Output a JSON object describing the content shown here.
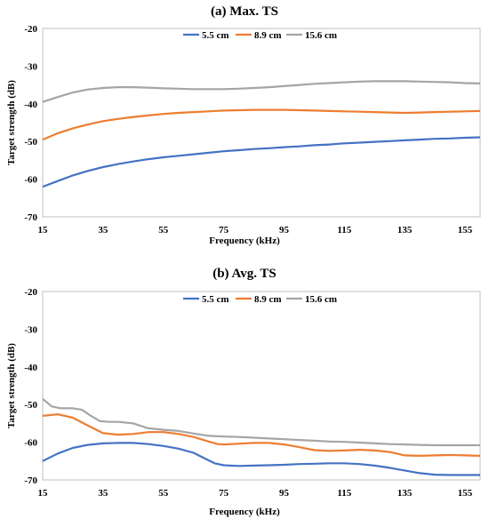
{
  "colors": {
    "s1": "#4472C4",
    "s2": "#ED7D31",
    "s3": "#A5A5A5"
  },
  "chart_data": [
    {
      "type": "line",
      "title": "(a) Max. TS",
      "xlabel": "Frequency (kHz)",
      "ylabel": "Target strength (dB)",
      "xlim": [
        15,
        160
      ],
      "ylim": [
        -70,
        -20
      ],
      "xticks": [
        "15",
        "35",
        "55",
        "75",
        "95",
        "115",
        "135",
        "155"
      ],
      "yticks": [
        "-20",
        "-30",
        "-40",
        "-50",
        "-60",
        "-70"
      ],
      "legend_position": "top-center",
      "grid": false,
      "series": [
        {
          "name": "5.5 cm",
          "x": [
            15,
            20,
            25,
            30,
            35,
            40,
            45,
            50,
            55,
            60,
            65,
            70,
            75,
            80,
            85,
            90,
            95,
            100,
            105,
            110,
            115,
            120,
            125,
            130,
            135,
            140,
            145,
            150,
            155,
            160
          ],
          "y": [
            -62,
            -60.5,
            -59,
            -57.8,
            -56.8,
            -56,
            -55.3,
            -54.7,
            -54.2,
            -53.8,
            -53.4,
            -53,
            -52.6,
            -52.3,
            -52,
            -51.8,
            -51.5,
            -51.3,
            -51,
            -50.8,
            -50.5,
            -50.3,
            -50.1,
            -49.9,
            -49.7,
            -49.5,
            -49.3,
            -49.2,
            -49,
            -48.9
          ]
        },
        {
          "name": "8.9 cm",
          "x": [
            15,
            20,
            25,
            30,
            35,
            40,
            45,
            50,
            55,
            60,
            65,
            70,
            75,
            80,
            85,
            90,
            95,
            100,
            105,
            110,
            115,
            120,
            125,
            130,
            135,
            140,
            145,
            150,
            155,
            160
          ],
          "y": [
            -49.5,
            -47.8,
            -46.5,
            -45.5,
            -44.6,
            -44,
            -43.5,
            -43.1,
            -42.7,
            -42.4,
            -42.2,
            -42,
            -41.8,
            -41.7,
            -41.6,
            -41.6,
            -41.6,
            -41.7,
            -41.8,
            -41.9,
            -42,
            -42.1,
            -42.2,
            -42.3,
            -42.4,
            -42.3,
            -42.2,
            -42.1,
            -42,
            -41.9
          ]
        },
        {
          "name": "15.6 cm",
          "x": [
            15,
            20,
            25,
            30,
            35,
            40,
            45,
            50,
            55,
            60,
            65,
            70,
            75,
            80,
            85,
            90,
            95,
            100,
            105,
            110,
            115,
            120,
            125,
            130,
            135,
            140,
            145,
            150,
            155,
            160
          ],
          "y": [
            -39.5,
            -38.2,
            -37,
            -36.2,
            -35.8,
            -35.6,
            -35.6,
            -35.7,
            -35.9,
            -36,
            -36.1,
            -36.1,
            -36.1,
            -36,
            -35.8,
            -35.6,
            -35.3,
            -35,
            -34.7,
            -34.5,
            -34.3,
            -34.1,
            -34,
            -34,
            -34,
            -34.1,
            -34.2,
            -34.3,
            -34.5,
            -34.6
          ]
        }
      ]
    },
    {
      "type": "line",
      "title": "(b) Avg. TS",
      "xlabel": "Frequency (kHz)",
      "ylabel": "Target strength (dB)",
      "xlim": [
        15,
        160
      ],
      "ylim": [
        -70,
        -20
      ],
      "xticks": [
        "15",
        "35",
        "55",
        "75",
        "95",
        "115",
        "135",
        "155"
      ],
      "yticks": [
        "-20",
        "-30",
        "-40",
        "-50",
        "-60",
        "-70"
      ],
      "legend_position": "top-center",
      "grid": false,
      "series": [
        {
          "name": "5.5 cm",
          "x": [
            15,
            20,
            25,
            30,
            35,
            40,
            45,
            50,
            55,
            60,
            65,
            70,
            72,
            75,
            80,
            85,
            90,
            95,
            100,
            105,
            110,
            115,
            120,
            125,
            130,
            135,
            140,
            145,
            150,
            155,
            160
          ],
          "y": [
            -65,
            -63,
            -61.5,
            -60.7,
            -60.3,
            -60.2,
            -60.2,
            -60.5,
            -61,
            -61.7,
            -62.8,
            -64.8,
            -65.6,
            -66.1,
            -66.3,
            -66.2,
            -66.1,
            -66,
            -65.8,
            -65.7,
            -65.6,
            -65.6,
            -65.8,
            -66.2,
            -66.8,
            -67.5,
            -68.2,
            -68.6,
            -68.7,
            -68.7,
            -68.7
          ]
        },
        {
          "name": "8.9 cm",
          "x": [
            15,
            20,
            25,
            30,
            35,
            40,
            45,
            50,
            55,
            60,
            65,
            70,
            73,
            75,
            80,
            85,
            90,
            95,
            100,
            105,
            110,
            115,
            120,
            125,
            130,
            135,
            140,
            145,
            150,
            155,
            160
          ],
          "y": [
            -53,
            -52.6,
            -53.5,
            -55.6,
            -57.6,
            -58,
            -57.8,
            -57.3,
            -57.3,
            -57.8,
            -58.6,
            -59.8,
            -60.5,
            -60.6,
            -60.4,
            -60.2,
            -60.2,
            -60.6,
            -61.3,
            -62.1,
            -62.3,
            -62.2,
            -62,
            -62.2,
            -62.6,
            -63.5,
            -63.6,
            -63.5,
            -63.4,
            -63.5,
            -63.6
          ]
        },
        {
          "name": "15.6 cm",
          "x": [
            15,
            18,
            21,
            25,
            28,
            31,
            34,
            37,
            40,
            45,
            50,
            55,
            60,
            65,
            70,
            75,
            80,
            85,
            90,
            95,
            100,
            105,
            110,
            115,
            120,
            125,
            130,
            135,
            140,
            145,
            150,
            155,
            160
          ],
          "y": [
            -48.5,
            -50.5,
            -51,
            -51,
            -51.4,
            -53,
            -54.4,
            -54.6,
            -54.6,
            -55,
            -56.3,
            -56.7,
            -57,
            -57.7,
            -58.3,
            -58.5,
            -58.6,
            -58.8,
            -59,
            -59.2,
            -59.4,
            -59.6,
            -59.8,
            -59.9,
            -60.1,
            -60.3,
            -60.5,
            -60.6,
            -60.7,
            -60.8,
            -60.8,
            -60.8,
            -60.8
          ]
        }
      ]
    }
  ]
}
